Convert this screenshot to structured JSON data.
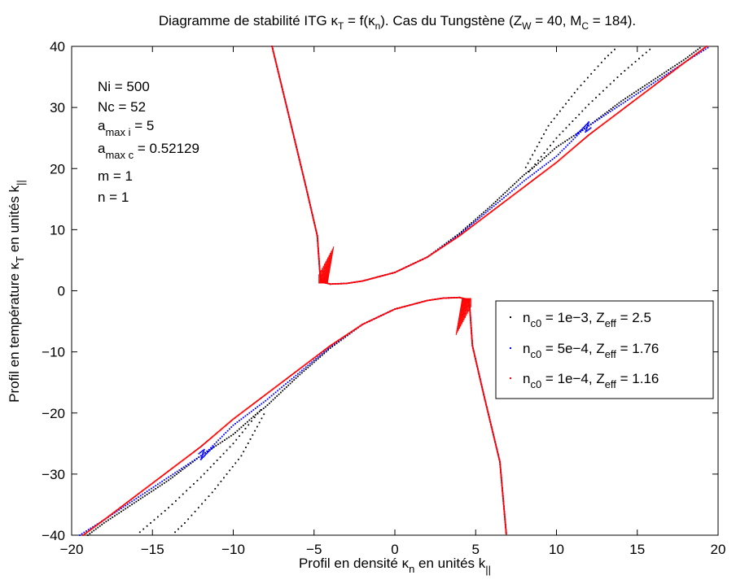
{
  "chart_data": {
    "type": "scatter",
    "title": {
      "prefix": "Diagramme de stabilité ITG ",
      "kappa_T": "κ",
      "kappa_T_sub": "T",
      "mid": " = f(",
      "kappa_n": "κ",
      "kappa_n_sub": "n",
      "rest": "). Cas du Tungstène (Z",
      "zw_sub": "W",
      "zw_val": " = 40, M",
      "mc_sub": "C",
      "mc_val": " = 184)."
    },
    "xlabel": {
      "text": "Profil en densité ",
      "kappa": "κ",
      "kappa_sub": "n",
      "units": " en unités k",
      "units_sub": "||"
    },
    "ylabel": {
      "text": "Profil en température ",
      "kappa": "κ",
      "kappa_sub": "T",
      "units": " en unités k",
      "units_sub": "||"
    },
    "xlim": [
      -20,
      20
    ],
    "ylim": [
      -40,
      40
    ],
    "xticks": [
      -20,
      -15,
      -10,
      -5,
      0,
      5,
      10,
      15,
      20
    ],
    "yticks": [
      -40,
      -30,
      -20,
      -10,
      0,
      10,
      20,
      30,
      40
    ],
    "xtick_labels": [
      "−20",
      "−15",
      "−10",
      "−5",
      "0",
      "5",
      "10",
      "15",
      "20"
    ],
    "ytick_labels": [
      "−40",
      "−30",
      "−20",
      "−10",
      "0",
      "10",
      "20",
      "30",
      "40"
    ],
    "grid": false,
    "legend_position": "right",
    "params": {
      "ni": "Ni = 500",
      "nc": "Nc = 52",
      "amax_i": {
        "base": "a",
        "sub": "max i",
        "val": " = 5"
      },
      "amax_c": {
        "base": "a",
        "sub": "max c",
        "val": " = 0.52129"
      },
      "m": "m = 1",
      "n": "n = 1"
    },
    "series": [
      {
        "name": "n_c0 = 1e−3, Z_eff = 2.5",
        "legend": {
          "n": "n",
          "nsub": "c0",
          "mid": " = 1e−3, Z",
          "zsub": "eff",
          "val": " = 2.5"
        },
        "color": "#000000",
        "upper_branch": [
          [
            -7.6,
            40
          ],
          [
            -6.5,
            28
          ],
          [
            -5.5,
            17
          ],
          [
            -4.8,
            9
          ],
          [
            -4.6,
            1.5
          ],
          [
            -4,
            1.1
          ],
          [
            -3,
            1.2
          ],
          [
            -2,
            1.6
          ],
          [
            0,
            3
          ],
          [
            2,
            5.5
          ],
          [
            4,
            9.4
          ],
          [
            6,
            14
          ],
          [
            8,
            19
          ],
          [
            8.5,
            20
          ],
          [
            10,
            23.5
          ],
          [
            12,
            27
          ],
          [
            14,
            31
          ],
          [
            16,
            34.5
          ],
          [
            18,
            38
          ],
          [
            19,
            40
          ]
        ],
        "upper_side": [
          [
            8.3,
            19.5
          ],
          [
            10,
            25
          ],
          [
            12,
            30.5
          ],
          [
            14,
            35.5
          ],
          [
            16,
            40
          ],
          [
            8.1,
            20.2
          ],
          [
            9.5,
            27
          ],
          [
            11.3,
            33
          ],
          [
            13,
            38
          ],
          [
            13.8,
            40
          ]
        ],
        "lower_branch": [
          [
            -19,
            -40
          ],
          [
            -18,
            -38
          ],
          [
            -16,
            -34.5
          ],
          [
            -14,
            -31
          ],
          [
            -12,
            -27
          ],
          [
            -10,
            -23.5
          ],
          [
            -8.5,
            -20
          ],
          [
            -8,
            -19
          ],
          [
            -6,
            -14
          ],
          [
            -4,
            -9.4
          ],
          [
            -2,
            -5.5
          ],
          [
            0,
            -3
          ],
          [
            2,
            -1.6
          ],
          [
            3,
            -1.2
          ],
          [
            4,
            -1.1
          ],
          [
            4.6,
            -1.5
          ],
          [
            4.8,
            -9
          ],
          [
            5.5,
            -17
          ],
          [
            6.5,
            -28
          ],
          [
            6.9,
            -40
          ]
        ],
        "lower_side": [
          [
            -8.3,
            -19.5
          ],
          [
            -10,
            -25
          ],
          [
            -12,
            -30.5
          ],
          [
            -14,
            -35.5
          ],
          [
            -16,
            -40
          ],
          [
            -8.1,
            -20.2
          ],
          [
            -9.5,
            -27
          ],
          [
            -11.3,
            -33
          ],
          [
            -13,
            -38
          ],
          [
            -13.8,
            -40
          ]
        ]
      },
      {
        "name": "n_c0 = 5e−4, Z_eff = 1.76",
        "legend": {
          "n": "n",
          "nsub": "c0",
          "mid": " = 5e−4, Z",
          "zsub": "eff",
          "val": " = 1.76"
        },
        "color": "#0000ff",
        "upper_branch": [
          [
            -7.6,
            40
          ],
          [
            -6.5,
            28
          ],
          [
            -5.5,
            17
          ],
          [
            -4.8,
            9
          ],
          [
            -4.6,
            1.5
          ],
          [
            -4,
            1.1
          ],
          [
            -3,
            1.2
          ],
          [
            -2,
            1.6
          ],
          [
            0,
            3
          ],
          [
            2,
            5.5
          ],
          [
            4,
            9.2
          ],
          [
            6,
            13.6
          ],
          [
            8,
            18
          ],
          [
            10,
            22
          ],
          [
            11.5,
            26
          ],
          [
            12,
            27
          ],
          [
            14,
            30.5
          ],
          [
            16,
            34
          ],
          [
            18,
            37.5
          ],
          [
            19.5,
            40
          ]
        ],
        "upper_side": [
          [
            11.2,
            25.5
          ],
          [
            11.6,
            26.5
          ],
          [
            12,
            27.6
          ],
          [
            11.8,
            26
          ],
          [
            12.2,
            26.8
          ]
        ],
        "lower_branch": [
          [
            -19.5,
            -40
          ],
          [
            -18,
            -37.5
          ],
          [
            -16,
            -34
          ],
          [
            -14,
            -30.5
          ],
          [
            -12,
            -27
          ],
          [
            -11.5,
            -26
          ],
          [
            -10,
            -22
          ],
          [
            -8,
            -18
          ],
          [
            -6,
            -13.6
          ],
          [
            -4,
            -9.2
          ],
          [
            -2,
            -5.5
          ],
          [
            0,
            -3
          ],
          [
            2,
            -1.6
          ],
          [
            3,
            -1.2
          ],
          [
            4,
            -1.1
          ],
          [
            4.6,
            -1.5
          ],
          [
            4.8,
            -9
          ],
          [
            5.5,
            -17
          ],
          [
            6.5,
            -28
          ],
          [
            6.9,
            -40
          ]
        ],
        "lower_side": [
          [
            -11.2,
            -25.5
          ],
          [
            -11.6,
            -26.5
          ],
          [
            -12,
            -27.6
          ],
          [
            -11.8,
            -26
          ],
          [
            -12.2,
            -26.8
          ]
        ]
      },
      {
        "name": "n_c0 = 1e−4, Z_eff = 1.16",
        "legend": {
          "n": "n",
          "nsub": "c0",
          "mid": " = 1e−4, Z",
          "zsub": "eff",
          "val": " = 1.16"
        },
        "color": "#ff0000",
        "upper_branch": [
          [
            -7.6,
            40
          ],
          [
            -6.5,
            28
          ],
          [
            -5.5,
            17
          ],
          [
            -4.8,
            9
          ],
          [
            -4.6,
            1.5
          ],
          [
            -4,
            1.1
          ],
          [
            -3,
            1.2
          ],
          [
            -2,
            1.6
          ],
          [
            0,
            3
          ],
          [
            2,
            5.5
          ],
          [
            4,
            9
          ],
          [
            6,
            13
          ],
          [
            8,
            17
          ],
          [
            10,
            21
          ],
          [
            12,
            25.5
          ],
          [
            14,
            29.5
          ],
          [
            16,
            33.5
          ],
          [
            18,
            37.5
          ],
          [
            19.8,
            41
          ]
        ],
        "upper_side": [],
        "lower_branch": [
          [
            -19.8,
            -41
          ],
          [
            -18,
            -37.5
          ],
          [
            -16,
            -33.5
          ],
          [
            -14,
            -29.5
          ],
          [
            -12,
            -25.5
          ],
          [
            -10,
            -21
          ],
          [
            -8,
            -17
          ],
          [
            -6,
            -13
          ],
          [
            -4,
            -9
          ],
          [
            -2,
            -5.5
          ],
          [
            0,
            -3
          ],
          [
            2,
            -1.6
          ],
          [
            3,
            -1.2
          ],
          [
            4,
            -1.1
          ],
          [
            4.6,
            -1.5
          ],
          [
            4.8,
            -9
          ],
          [
            5.5,
            -17
          ],
          [
            6.5,
            -28
          ],
          [
            6.9,
            -40
          ]
        ],
        "lower_side": []
      }
    ]
  }
}
